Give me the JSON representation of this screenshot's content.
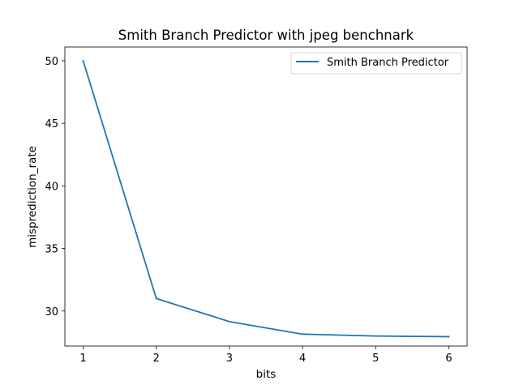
{
  "chart_data": {
    "type": "line",
    "title": "Smith Branch Predictor with jpeg benchnark",
    "xlabel": "bits",
    "ylabel": "misprediction_rate",
    "x": [
      1,
      2,
      3,
      4,
      5,
      6
    ],
    "series": [
      {
        "name": "Smith Branch Predictor",
        "values": [
          50.0,
          31.0,
          29.15,
          28.15,
          28.0,
          27.95
        ],
        "color": "#1f77b4"
      }
    ],
    "xlim": [
      0.75,
      6.25
    ],
    "ylim": [
      27.2,
      51.1
    ],
    "x_ticks": [
      "1",
      "2",
      "3",
      "4",
      "5",
      "6"
    ],
    "y_ticks": [
      "30",
      "35",
      "40",
      "45",
      "50"
    ],
    "grid": false,
    "legend_position": "top-right"
  }
}
